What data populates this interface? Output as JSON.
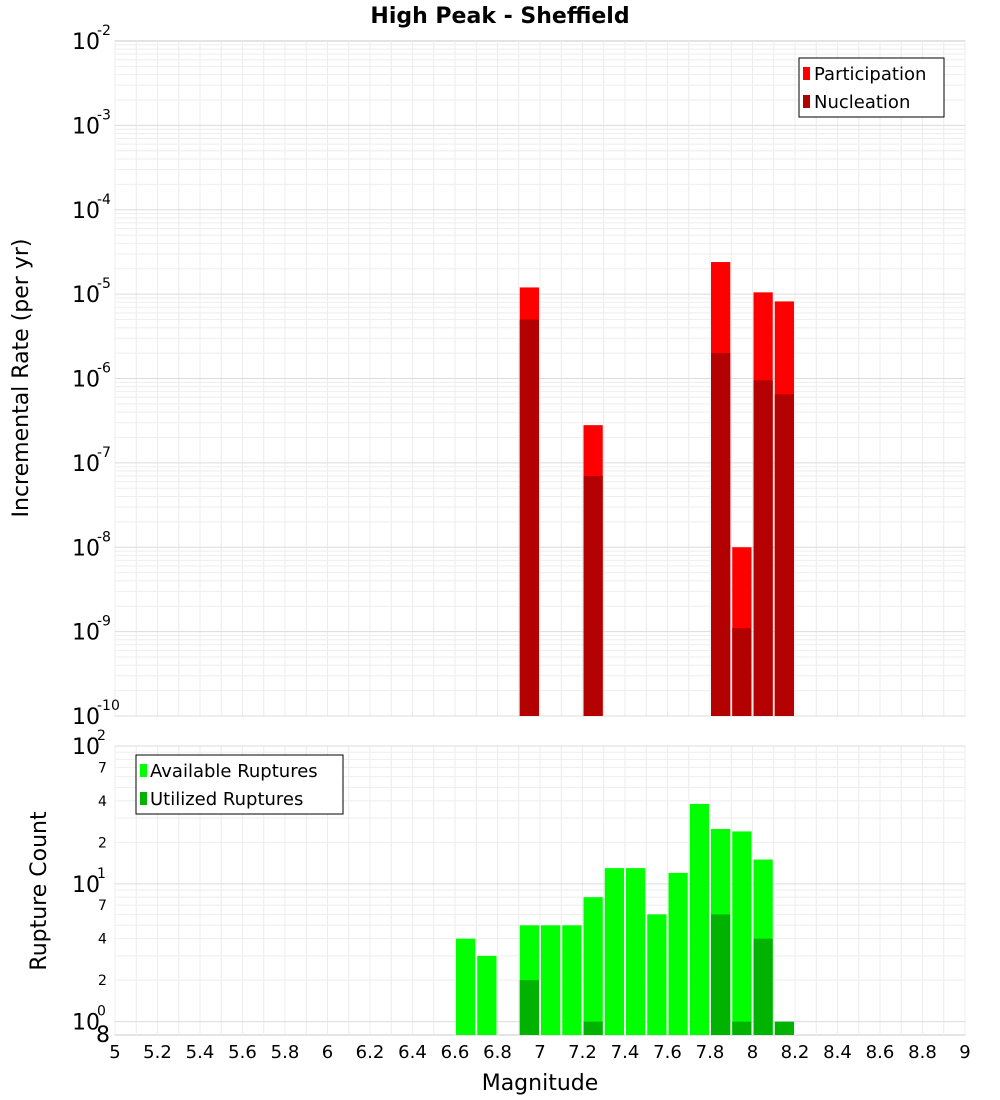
{
  "chart_data": [
    {
      "type": "bar",
      "title": "High Peak - Sheffield",
      "xlabel": "",
      "ylabel": "Incremental Rate (per yr)",
      "yscale": "log",
      "ylim": [
        1e-10,
        0.01
      ],
      "xlim": [
        5,
        9
      ],
      "bin_width": 0.1,
      "grid": true,
      "legend_position": "top-right",
      "y_tick_bases": [
        "10",
        "10",
        "10",
        "10",
        "10",
        "10",
        "10",
        "10",
        "10"
      ],
      "y_tick_exponents": [
        "-10",
        "-9",
        "-8",
        "-7",
        "-6",
        "-5",
        "-4",
        "-3",
        "-2"
      ],
      "series": [
        {
          "name": "Participation",
          "color": "#ff0000",
          "x": [
            6.95,
            7.25,
            7.85,
            7.95,
            8.05,
            8.15
          ],
          "values": [
            1.2e-05,
            2.8e-07,
            2.4e-05,
            1e-08,
            1.05e-05,
            8.2e-06
          ]
        },
        {
          "name": "Nucleation",
          "color": "#b30000",
          "x": [
            6.95,
            7.25,
            7.85,
            7.95,
            8.05,
            8.15
          ],
          "values": [
            5e-06,
            7e-08,
            2e-06,
            1.1e-09,
            9.5e-07,
            6.5e-07
          ]
        }
      ]
    },
    {
      "type": "bar",
      "title": "",
      "xlabel": "Magnitude",
      "ylabel": "Rupture Count",
      "yscale": "log",
      "ylim": [
        0.8,
        100
      ],
      "xlim": [
        5,
        9
      ],
      "bin_width": 0.1,
      "grid": true,
      "legend_position": "top-left",
      "x_ticks": [
        "5",
        "5.2",
        "5.4",
        "5.6",
        "5.8",
        "6",
        "6.2",
        "6.4",
        "6.6",
        "6.8",
        "7",
        "7.2",
        "7.4",
        "7.6",
        "7.8",
        "8",
        "8.2",
        "8.4",
        "8.6",
        "8.8",
        "9"
      ],
      "y_tick_labels": {
        "base_0": "10",
        "exp_0": "0",
        "base_1": "10",
        "exp_1": "1",
        "base_2": "10",
        "exp_2": "2",
        "lowest": "8",
        "minor": [
          "2",
          "4",
          "7",
          "2",
          "4",
          "7"
        ]
      },
      "series": [
        {
          "name": "Available Ruptures",
          "color": "#00ff00",
          "x": [
            6.65,
            6.75,
            6.95,
            7.05,
            7.15,
            7.25,
            7.35,
            7.45,
            7.55,
            7.65,
            7.75,
            7.85,
            7.95,
            8.05
          ],
          "values": [
            4,
            3,
            5,
            5,
            5,
            8,
            13,
            13,
            6,
            12,
            38,
            25,
            24,
            15
          ]
        },
        {
          "name": "Utilized Ruptures",
          "color": "#00b300",
          "x": [
            6.95,
            7.25,
            7.85,
            7.95,
            8.05,
            8.15
          ],
          "values": [
            2,
            1,
            6,
            1,
            4,
            1
          ]
        }
      ]
    }
  ]
}
